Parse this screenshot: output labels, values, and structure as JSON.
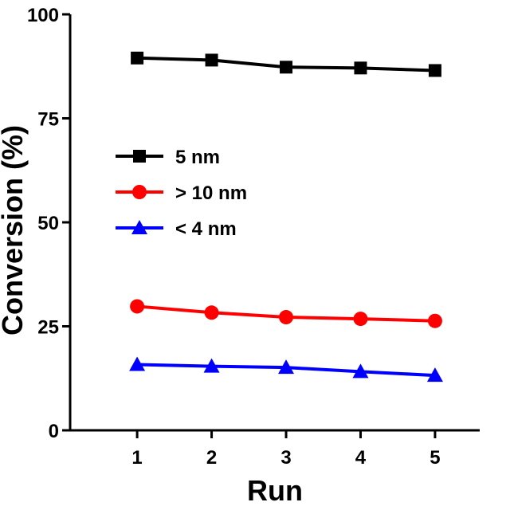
{
  "chart_data": {
    "type": "line",
    "xlabel": "Run",
    "ylabel": "Conversion (%)",
    "x": [
      1,
      2,
      3,
      4,
      5
    ],
    "xlim": [
      0.1,
      5.6
    ],
    "ylim": [
      0,
      100
    ],
    "xticks": [
      "1",
      "2",
      "3",
      "4",
      "5"
    ],
    "yticks": [
      "0",
      "25",
      "50",
      "75",
      "100"
    ],
    "grid": false,
    "legend_position": "upper-left",
    "series": [
      {
        "name": "5 nm",
        "values": [
          89.5,
          89.0,
          87.3,
          87.1,
          86.5
        ],
        "color": "#000000",
        "marker": "square"
      },
      {
        "name": "> 10 nm",
        "values": [
          29.8,
          28.3,
          27.2,
          26.8,
          26.3
        ],
        "color": "#ff0000",
        "marker": "circle"
      },
      {
        "name": "< 4 nm",
        "values": [
          15.8,
          15.4,
          15.1,
          14.1,
          13.2
        ],
        "color": "#0000ff",
        "marker": "triangle"
      }
    ]
  }
}
